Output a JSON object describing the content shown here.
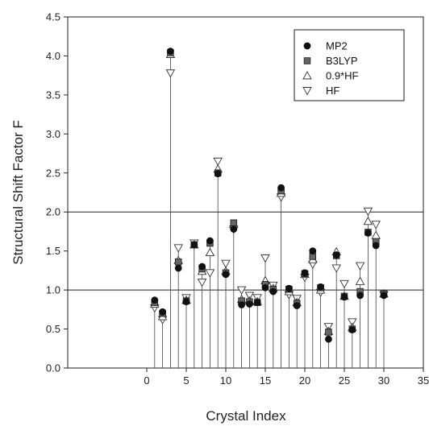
{
  "chart_data": {
    "type": "scatter",
    "title": "",
    "xlabel": "Crystal Index",
    "ylabel": "Structural Shift Factor F",
    "xlim": [
      -10,
      35
    ],
    "ylim": [
      0.0,
      4.5
    ],
    "x_ticks": [
      "0",
      "5",
      "10",
      "15",
      "20",
      "25",
      "30",
      "35"
    ],
    "y_ticks": [
      "0.0",
      "0.5",
      "1.0",
      "1.5",
      "2.0",
      "2.5",
      "3.0",
      "3.5",
      "4.0",
      "4.5"
    ],
    "reference_lines_y": [
      1.0,
      2.0
    ],
    "stems": true,
    "grid": false,
    "legend_position": "top-right",
    "x": [
      1,
      2,
      3,
      4,
      5,
      6,
      7,
      8,
      9,
      10,
      11,
      12,
      13,
      14,
      15,
      16,
      17,
      18,
      19,
      20,
      21,
      22,
      23,
      24,
      25,
      26,
      27,
      28,
      29,
      30
    ],
    "series": [
      {
        "name": "MP2",
        "marker": "filled-circle",
        "color": "#111111",
        "values": [
          0.87,
          0.72,
          4.06,
          1.28,
          0.85,
          1.58,
          1.3,
          1.63,
          2.49,
          1.2,
          1.78,
          0.81,
          0.82,
          0.84,
          1.03,
          0.98,
          2.31,
          1.02,
          0.8,
          1.22,
          1.5,
          1.04,
          0.37,
          1.45,
          0.91,
          0.49,
          0.93,
          1.73,
          1.57,
          0.93
        ]
      },
      {
        "name": "B3LYP",
        "marker": "filled-square",
        "color": "#555555",
        "values": [
          0.84,
          0.7,
          4.04,
          1.36,
          0.86,
          1.58,
          1.27,
          1.6,
          2.5,
          1.22,
          1.86,
          0.86,
          0.85,
          0.84,
          1.07,
          1.01,
          2.27,
          1.01,
          0.83,
          1.21,
          1.43,
          1.03,
          0.46,
          1.44,
          0.92,
          0.5,
          0.98,
          1.74,
          1.62,
          0.95
        ]
      },
      {
        "name": "0.9*HF",
        "marker": "open-triangle-up",
        "color": "#333333",
        "values": [
          0.82,
          0.66,
          4.02,
          1.38,
          0.87,
          1.58,
          1.24,
          1.48,
          2.55,
          1.24,
          1.84,
          0.88,
          0.86,
          0.85,
          1.12,
          1.02,
          2.24,
          0.98,
          0.84,
          1.2,
          1.39,
          1.0,
          0.47,
          1.49,
          0.92,
          0.52,
          1.11,
          1.88,
          1.7,
          0.95
        ]
      },
      {
        "name": "HF",
        "marker": "open-triangle-down",
        "color": "#333333",
        "values": [
          0.77,
          0.62,
          3.78,
          1.54,
          0.9,
          1.6,
          1.1,
          1.22,
          2.65,
          1.34,
          1.78,
          1.0,
          0.93,
          0.9,
          1.41,
          1.06,
          2.19,
          0.94,
          0.89,
          1.16,
          1.33,
          0.97,
          0.53,
          1.28,
          1.08,
          0.59,
          1.31,
          2.01,
          1.84,
          0.94
        ]
      }
    ]
  }
}
